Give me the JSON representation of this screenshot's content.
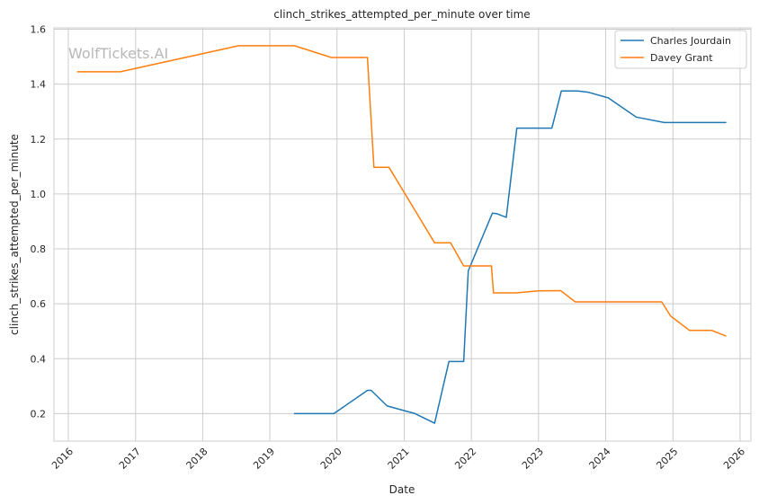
{
  "watermark": "WolfTickets.AI",
  "chart_data": {
    "type": "line",
    "title": "clinch_strikes_attempted_per_minute over time",
    "xlabel": "Date",
    "ylabel": "clinch_strikes_attempted_per_minute",
    "x_ticks": [
      "2016",
      "2017",
      "2018",
      "2019",
      "2020",
      "2021",
      "2022",
      "2023",
      "2024",
      "2025",
      "2026"
    ],
    "y_ticks": [
      "0.2",
      "0.4",
      "0.6",
      "0.8",
      "1.0",
      "1.2",
      "1.4",
      "1.6"
    ],
    "xlim": [
      "2015-10-15",
      "2026-03-01"
    ],
    "ylim": [
      0.1,
      1.605
    ],
    "grid": true,
    "legend_position": "top-right",
    "series": [
      {
        "name": "Charles Jourdain",
        "color": "#1f77b4",
        "points": [
          [
            "2019-05-15",
            0.2
          ],
          [
            "2019-12-15",
            0.2
          ],
          [
            "2020-06-15",
            0.285
          ],
          [
            "2020-07-05",
            0.285
          ],
          [
            "2020-09-30",
            0.228
          ],
          [
            "2021-03-01",
            0.2
          ],
          [
            "2021-06-15",
            0.165
          ],
          [
            "2021-09-01",
            0.39
          ],
          [
            "2021-11-20",
            0.39
          ],
          [
            "2021-12-15",
            0.72
          ],
          [
            "2022-04-25",
            0.93
          ],
          [
            "2022-05-20",
            0.928
          ],
          [
            "2022-07-10",
            0.915
          ],
          [
            "2022-09-05",
            1.24
          ],
          [
            "2023-03-15",
            1.24
          ],
          [
            "2023-05-05",
            1.375
          ],
          [
            "2023-08-01",
            1.375
          ],
          [
            "2023-10-01",
            1.37
          ],
          [
            "2024-01-15",
            1.35
          ],
          [
            "2024-06-15",
            1.28
          ],
          [
            "2024-11-15",
            1.26
          ],
          [
            "2025-10-15",
            1.26
          ]
        ]
      },
      {
        "name": "Davey Grant",
        "color": "#ff7f0e",
        "points": [
          [
            "2016-02-20",
            1.445
          ],
          [
            "2016-10-10",
            1.445
          ],
          [
            "2018-07-15",
            1.54
          ],
          [
            "2019-05-15",
            1.54
          ],
          [
            "2019-12-01",
            1.497
          ],
          [
            "2020-06-15",
            1.497
          ],
          [
            "2020-07-20",
            1.097
          ],
          [
            "2020-10-10",
            1.097
          ],
          [
            "2021-06-15",
            0.822
          ],
          [
            "2021-09-10",
            0.822
          ],
          [
            "2021-11-20",
            0.738
          ],
          [
            "2022-04-20",
            0.738
          ],
          [
            "2022-05-01",
            0.64
          ],
          [
            "2022-09-01",
            0.64
          ],
          [
            "2023-01-01",
            0.647
          ],
          [
            "2023-05-01",
            0.648
          ],
          [
            "2023-07-20",
            0.607
          ],
          [
            "2024-11-01",
            0.607
          ],
          [
            "2024-12-20",
            0.555
          ],
          [
            "2025-04-01",
            0.503
          ],
          [
            "2025-08-01",
            0.503
          ],
          [
            "2025-10-15",
            0.483
          ]
        ]
      }
    ]
  }
}
